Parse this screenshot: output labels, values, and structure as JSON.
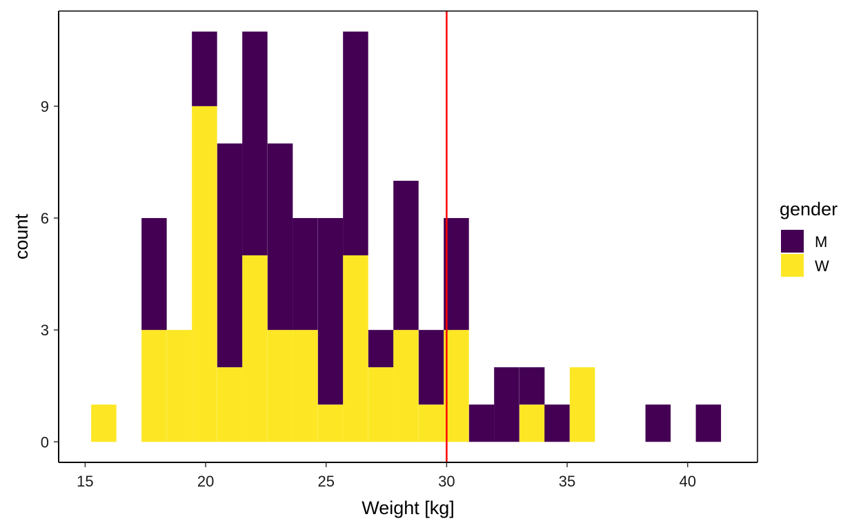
{
  "chart_data": {
    "type": "bar",
    "subtype": "stacked-histogram",
    "xlabel": "Weight  [kg]",
    "ylabel": "count",
    "xlim": [
      13.9,
      42.9
    ],
    "ylim": [
      -0.55,
      11.55
    ],
    "x_ticks": [
      15,
      20,
      25,
      30,
      35,
      40
    ],
    "y_ticks": [
      0,
      3,
      6,
      9
    ],
    "bin_width": 1.045,
    "bins": [
      {
        "x0": 15.25,
        "M": 0,
        "W": 1
      },
      {
        "x0": 17.34,
        "M": 3,
        "W": 3
      },
      {
        "x0": 18.39,
        "M": 0,
        "W": 3
      },
      {
        "x0": 19.43,
        "M": 2,
        "W": 9
      },
      {
        "x0": 20.48,
        "M": 6,
        "W": 2
      },
      {
        "x0": 21.52,
        "M": 6,
        "W": 5
      },
      {
        "x0": 22.57,
        "M": 5,
        "W": 3
      },
      {
        "x0": 23.61,
        "M": 3,
        "W": 3
      },
      {
        "x0": 24.66,
        "M": 5,
        "W": 1
      },
      {
        "x0": 25.7,
        "M": 6,
        "W": 5
      },
      {
        "x0": 26.75,
        "M": 1,
        "W": 2
      },
      {
        "x0": 27.79,
        "M": 4,
        "W": 3
      },
      {
        "x0": 28.84,
        "M": 2,
        "W": 1
      },
      {
        "x0": 29.88,
        "M": 3,
        "W": 3
      },
      {
        "x0": 30.93,
        "M": 1,
        "W": 0
      },
      {
        "x0": 31.97,
        "M": 2,
        "W": 0
      },
      {
        "x0": 33.02,
        "M": 1,
        "W": 1
      },
      {
        "x0": 34.06,
        "M": 1,
        "W": 0
      },
      {
        "x0": 35.11,
        "M": 0,
        "W": 2
      },
      {
        "x0": 38.25,
        "M": 1,
        "W": 0
      },
      {
        "x0": 40.34,
        "M": 1,
        "W": 0
      }
    ],
    "vline": {
      "x": 30,
      "color": "#ff0000"
    },
    "legend": {
      "title": "gender",
      "placement": "right",
      "items": [
        {
          "name": "M",
          "color": "#440154"
        },
        {
          "name": "W",
          "color": "#fde725"
        }
      ]
    },
    "grid": false
  }
}
